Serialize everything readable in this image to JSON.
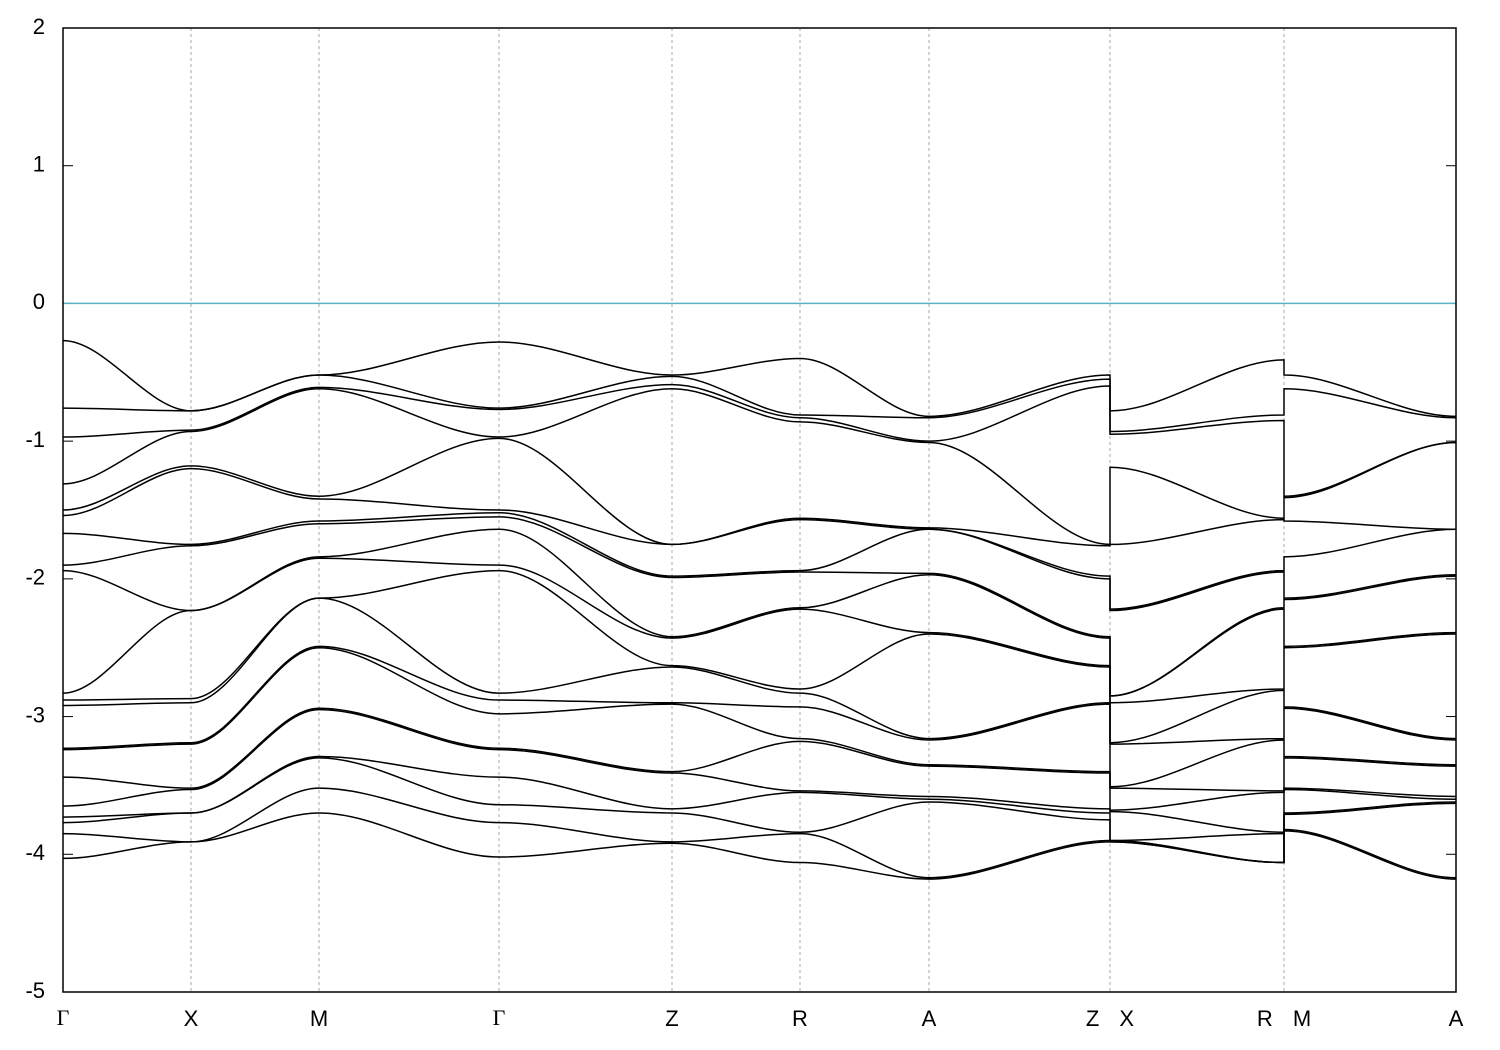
{
  "chart_data": {
    "type": "line",
    "x": [
      0,
      1.28,
      2.56,
      4.36,
      6.09,
      7.37,
      8.66,
      10.47,
      10.47,
      12.21,
      12.21,
      13.93
    ],
    "xlim": [
      0,
      13.93
    ],
    "xticks": [
      {
        "value": 0,
        "label": "Γ"
      },
      {
        "value": 1.28,
        "label": "X"
      },
      {
        "value": 2.56,
        "label": "M"
      },
      {
        "value": 4.36,
        "label": "Γ"
      },
      {
        "value": 6.09,
        "label": "Z"
      },
      {
        "value": 7.37,
        "label": "R"
      },
      {
        "value": 8.66,
        "label": "A"
      },
      {
        "value": 10.47,
        "label": "Z X"
      },
      {
        "value": 12.21,
        "label": "R M"
      },
      {
        "value": 13.93,
        "label": "A"
      }
    ],
    "ylim": [
      -5,
      2
    ],
    "yticks": [
      -5,
      -4,
      -3,
      -2,
      -1,
      0,
      1,
      2
    ],
    "grid": "x",
    "line_color": "#000000",
    "hlines": [
      {
        "value": 0,
        "color": "#5ab4c8"
      }
    ],
    "series": [
      {
        "values": [
          -0.27,
          -0.78,
          -0.52,
          -0.28,
          -0.52,
          -0.4,
          -0.82,
          -0.52,
          -0.78,
          -0.41,
          -0.52,
          -0.82
        ]
      },
      {
        "values": [
          -0.76,
          -0.78,
          -0.52,
          -0.76,
          -0.53,
          -0.81,
          -0.83,
          -0.55,
          -0.93,
          -0.81,
          -0.62,
          -0.83
        ]
      },
      {
        "values": [
          -0.97,
          -0.92,
          -0.61,
          -0.77,
          -0.59,
          -0.83,
          -1.0,
          -0.6,
          -0.95,
          -0.85,
          -1.4,
          -1.01
        ]
      },
      {
        "values": [
          -1.31,
          -0.93,
          -0.62,
          -0.97,
          -0.62,
          -0.86,
          -1.01,
          -1.75,
          -1.19,
          -1.56,
          -1.41,
          -1.01
        ]
      },
      {
        "values": [
          -1.5,
          -1.18,
          -1.4,
          -0.98,
          -1.75,
          -1.56,
          -1.63,
          -1.76,
          -1.75,
          -1.57,
          -1.58,
          -1.64
        ]
      },
      {
        "values": [
          -1.54,
          -1.2,
          -1.42,
          -1.5,
          -1.75,
          -1.57,
          -1.64,
          -1.98,
          -2.22,
          -1.94,
          -1.84,
          -1.64
        ]
      },
      {
        "values": [
          -1.67,
          -1.75,
          -1.58,
          -1.52,
          -1.98,
          -1.94,
          -1.64,
          -2.0,
          -2.23,
          -1.95,
          -2.14,
          -1.97
        ]
      },
      {
        "values": [
          -1.9,
          -1.76,
          -1.6,
          -1.55,
          -1.99,
          -1.95,
          -1.96,
          -2.42,
          -2.85,
          -2.21,
          -2.15,
          -1.98
        ]
      },
      {
        "values": [
          -1.94,
          -2.23,
          -1.84,
          -1.64,
          -2.42,
          -2.21,
          -1.97,
          -2.43,
          -2.85,
          -2.22,
          -2.49,
          -2.39
        ]
      },
      {
        "values": [
          -2.83,
          -2.23,
          -1.85,
          -1.9,
          -2.43,
          -2.22,
          -2.39,
          -2.63,
          -2.9,
          -2.8,
          -2.5,
          -2.4
        ]
      },
      {
        "values": [
          -2.88,
          -2.87,
          -2.14,
          -1.94,
          -2.63,
          -2.8,
          -2.4,
          -2.64,
          -3.19,
          -2.81,
          -2.93,
          -3.16
        ]
      },
      {
        "values": [
          -2.92,
          -2.9,
          -2.14,
          -2.83,
          -2.64,
          -2.83,
          -3.16,
          -2.9,
          -3.2,
          -3.16,
          -2.94,
          -3.17
        ]
      },
      {
        "values": [
          -3.23,
          -3.19,
          -2.49,
          -2.88,
          -2.9,
          -2.93,
          -3.17,
          -2.91,
          -3.51,
          -3.17,
          -3.29,
          -3.35
        ]
      },
      {
        "values": [
          -3.24,
          -3.2,
          -2.5,
          -2.98,
          -2.91,
          -3.16,
          -3.35,
          -3.4,
          -3.52,
          -3.54,
          -3.3,
          -3.36
        ]
      },
      {
        "values": [
          -3.44,
          -3.52,
          -2.94,
          -3.23,
          -3.4,
          -3.18,
          -3.36,
          -3.41,
          -3.68,
          -3.55,
          -3.52,
          -3.58
        ]
      },
      {
        "values": [
          -3.65,
          -3.53,
          -2.95,
          -3.24,
          -3.41,
          -3.54,
          -3.58,
          -3.67,
          -3.69,
          -3.84,
          -3.53,
          -3.6
        ]
      },
      {
        "values": [
          -3.73,
          -3.7,
          -3.29,
          -3.44,
          -3.67,
          -3.55,
          -3.6,
          -3.7,
          -3.9,
          -3.85,
          -3.7,
          -3.62
        ]
      },
      {
        "values": [
          -3.77,
          -3.7,
          -3.3,
          -3.64,
          -3.7,
          -3.84,
          -3.62,
          -3.75,
          -3.9,
          -4.06,
          -3.71,
          -3.63
        ]
      },
      {
        "values": [
          -3.85,
          -3.91,
          -3.52,
          -3.77,
          -3.91,
          -3.85,
          -4.17,
          -3.9,
          -3.91,
          -4.06,
          -3.82,
          -4.17
        ]
      },
      {
        "values": [
          -4.03,
          -3.91,
          -3.7,
          -4.02,
          -3.92,
          -4.06,
          -4.18,
          -3.91,
          -3.91,
          -4.06,
          -3.83,
          -4.18
        ]
      }
    ]
  }
}
